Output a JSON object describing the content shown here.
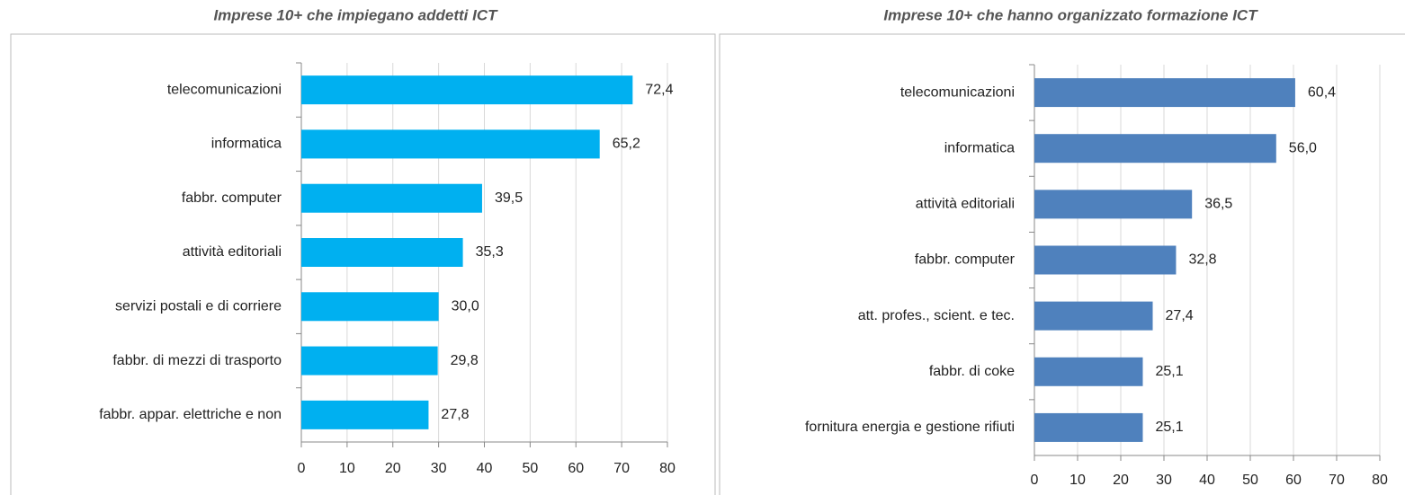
{
  "chart_data": [
    {
      "type": "bar",
      "orientation": "horizontal",
      "title": "Imprese 10+ che impiegano addetti ICT",
      "categories": [
        "telecomunicazioni",
        "informatica",
        "fabbr. computer",
        "attività editoriali",
        "servizi postali e di corriere",
        "fabbr. di mezzi di trasporto",
        "fabbr. appar. elettriche e non"
      ],
      "values": [
        72.4,
        65.2,
        39.5,
        35.3,
        30.0,
        29.8,
        27.8
      ],
      "value_labels": [
        "72,4",
        "65,2",
        "39,5",
        "35,3",
        "30,0",
        "29,8",
        "27,8"
      ],
      "color": "#00b0f0",
      "xlim": [
        0,
        80
      ],
      "xticks": [
        0,
        10,
        20,
        30,
        40,
        50,
        60,
        70,
        80
      ],
      "grid": true
    },
    {
      "type": "bar",
      "orientation": "horizontal",
      "title": "Imprese 10+ che hanno organizzato formazione ICT",
      "categories": [
        "telecomunicazioni",
        "informatica",
        "attività editoriali",
        "fabbr. computer",
        "att. profes., scient. e tec.",
        "fabbr. di coke",
        "fornitura energia e gestione rifiuti"
      ],
      "values": [
        60.4,
        56.0,
        36.5,
        32.8,
        27.4,
        25.1,
        25.1
      ],
      "value_labels": [
        "60,4",
        "56,0",
        "36,5",
        "32,8",
        "27,4",
        "25,1",
        "25,1"
      ],
      "color": "#4f81bd",
      "xlim": [
        0,
        80
      ],
      "xticks": [
        0,
        10,
        20,
        30,
        40,
        50,
        60,
        70,
        80
      ],
      "grid": true
    }
  ]
}
